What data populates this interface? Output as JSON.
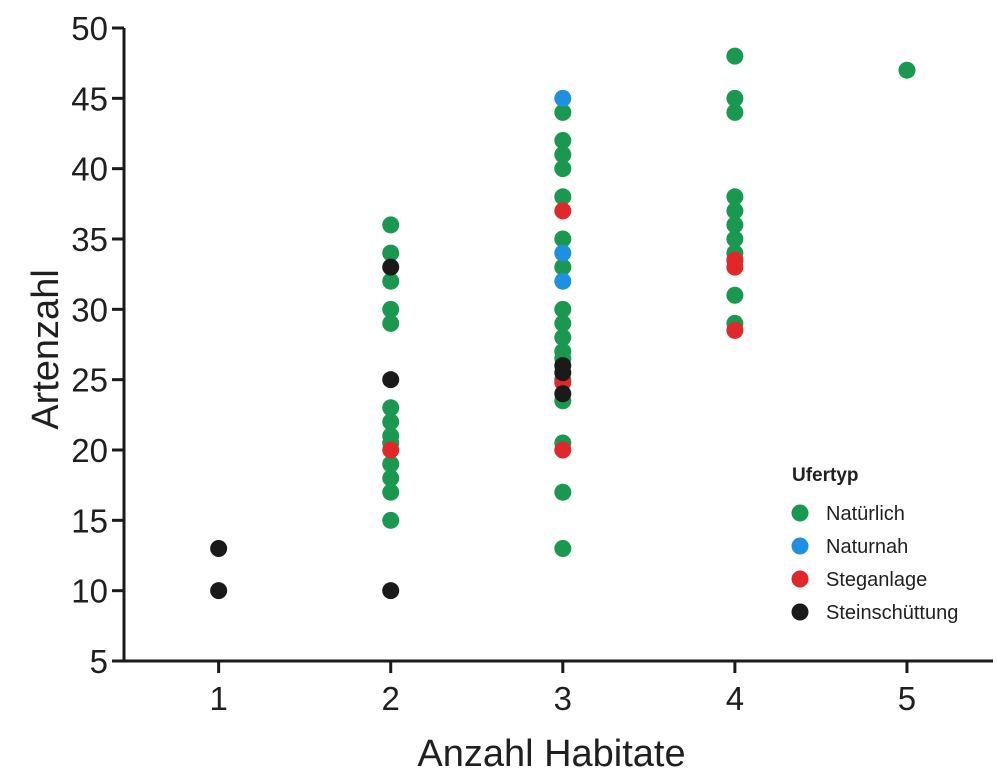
{
  "chart_data": {
    "type": "scatter",
    "title": "",
    "xlabel": "Anzahl Habitate",
    "ylabel": "Artenzahl",
    "xlim": [
      0.45,
      5.5
    ],
    "ylim": [
      5,
      50
    ],
    "x_ticks": [
      "1",
      "2",
      "3",
      "4",
      "5"
    ],
    "y_ticks": [
      "5",
      "10",
      "15",
      "20",
      "25",
      "30",
      "35",
      "40",
      "45",
      "50"
    ],
    "grid": false,
    "legend_title": "Ufertyp",
    "legend_position": "right",
    "series": [
      {
        "name": "Natürlich",
        "color": "#1a9850",
        "points": [
          [
            2,
            15
          ],
          [
            2,
            17
          ],
          [
            2,
            18
          ],
          [
            2,
            19
          ],
          [
            2,
            20.5
          ],
          [
            2,
            21
          ],
          [
            2,
            22
          ],
          [
            2,
            23
          ],
          [
            2,
            29
          ],
          [
            2,
            30
          ],
          [
            2,
            32
          ],
          [
            2,
            34
          ],
          [
            2,
            36
          ],
          [
            3,
            13
          ],
          [
            3,
            17
          ],
          [
            3,
            20.5
          ],
          [
            3,
            23.5
          ],
          [
            3,
            25
          ],
          [
            3,
            26.5
          ],
          [
            3,
            27
          ],
          [
            3,
            28
          ],
          [
            3,
            29
          ],
          [
            3,
            30
          ],
          [
            3,
            33
          ],
          [
            3,
            35
          ],
          [
            3,
            38
          ],
          [
            3,
            40
          ],
          [
            3,
            41
          ],
          [
            3,
            42
          ],
          [
            3,
            44
          ],
          [
            4,
            29
          ],
          [
            4,
            31
          ],
          [
            4,
            33.5
          ],
          [
            4,
            34
          ],
          [
            4,
            35
          ],
          [
            4,
            36
          ],
          [
            4,
            37
          ],
          [
            4,
            38
          ],
          [
            4,
            44
          ],
          [
            4,
            45
          ],
          [
            4,
            48
          ],
          [
            5,
            47
          ]
        ]
      },
      {
        "name": "Naturnah",
        "color": "#1e90e0",
        "points": [
          [
            3,
            32
          ],
          [
            3,
            34
          ],
          [
            3,
            45
          ]
        ]
      },
      {
        "name": "Steganlage",
        "color": "#e0272b",
        "points": [
          [
            2,
            20
          ],
          [
            3,
            20
          ],
          [
            3,
            24.8
          ],
          [
            3,
            37
          ],
          [
            4,
            28.5
          ],
          [
            4,
            33
          ],
          [
            4,
            33.5
          ]
        ]
      },
      {
        "name": "Steinschüttung",
        "color": "#1a1a1a",
        "points": [
          [
            1,
            10
          ],
          [
            1,
            13
          ],
          [
            2,
            10
          ],
          [
            2,
            25
          ],
          [
            2,
            33
          ],
          [
            3,
            24
          ],
          [
            3,
            25.5
          ],
          [
            3,
            26
          ]
        ]
      }
    ]
  }
}
